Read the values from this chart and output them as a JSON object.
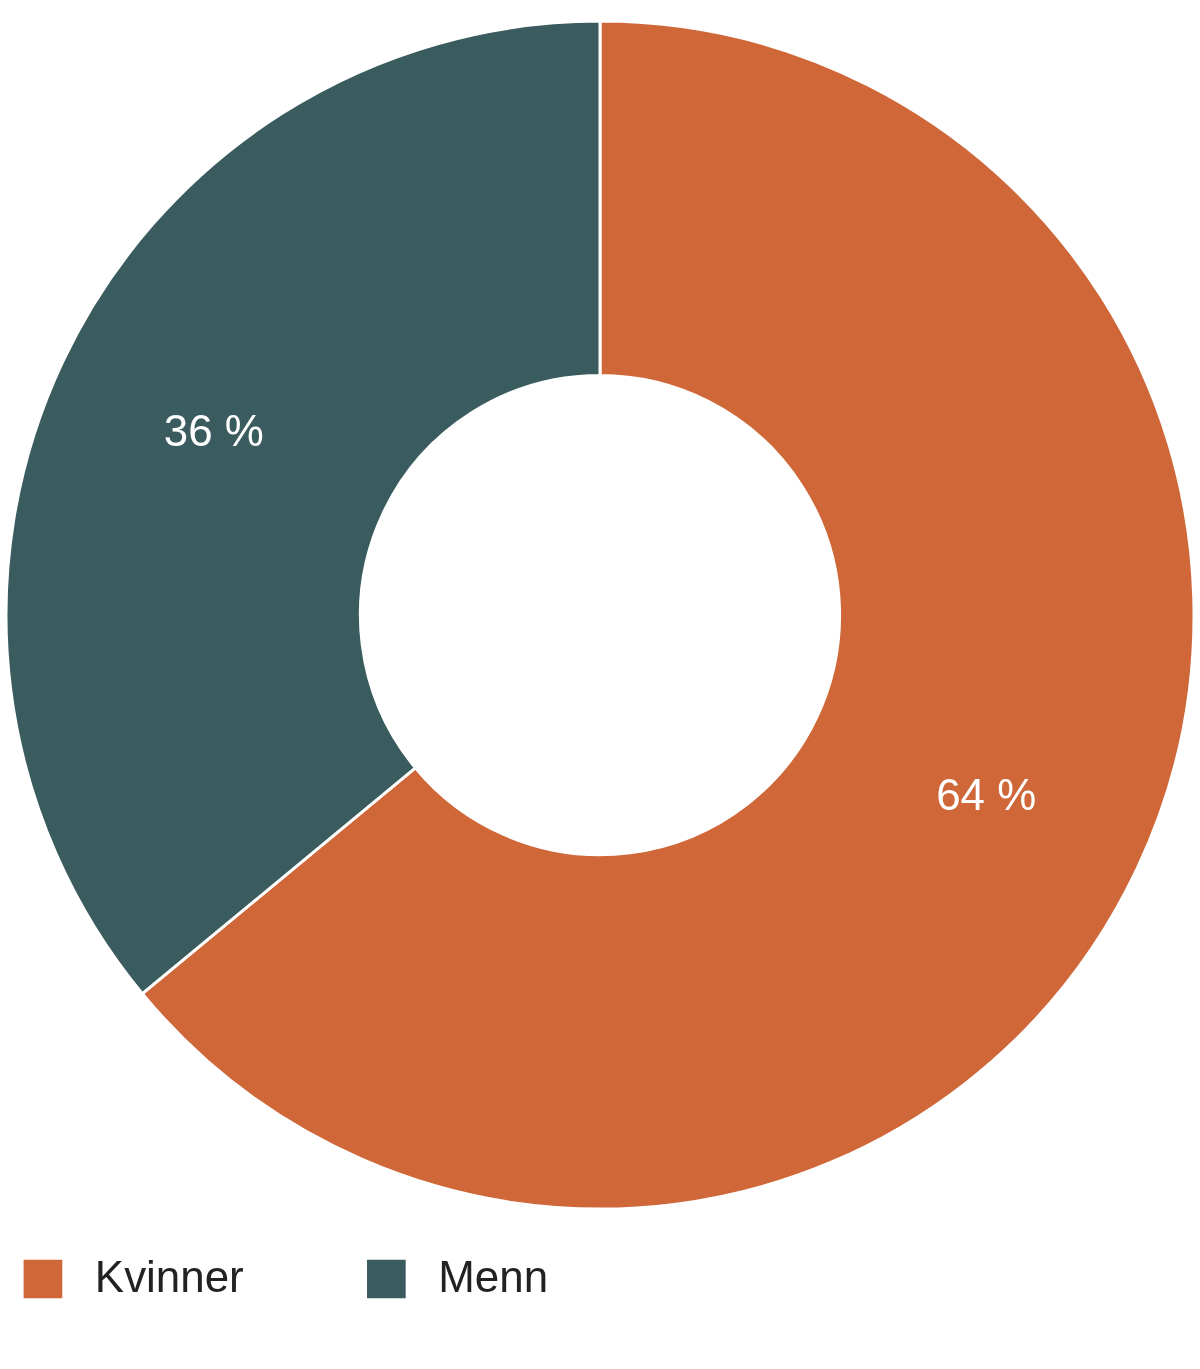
{
  "chart_data": {
    "type": "donut",
    "categories": [
      "Kvinner",
      "Menn"
    ],
    "values": [
      64,
      36
    ],
    "colors": [
      "#cf6739",
      "#3a5c5e"
    ],
    "value_labels": [
      "64 %",
      "36 %"
    ],
    "legend": "bottom"
  }
}
